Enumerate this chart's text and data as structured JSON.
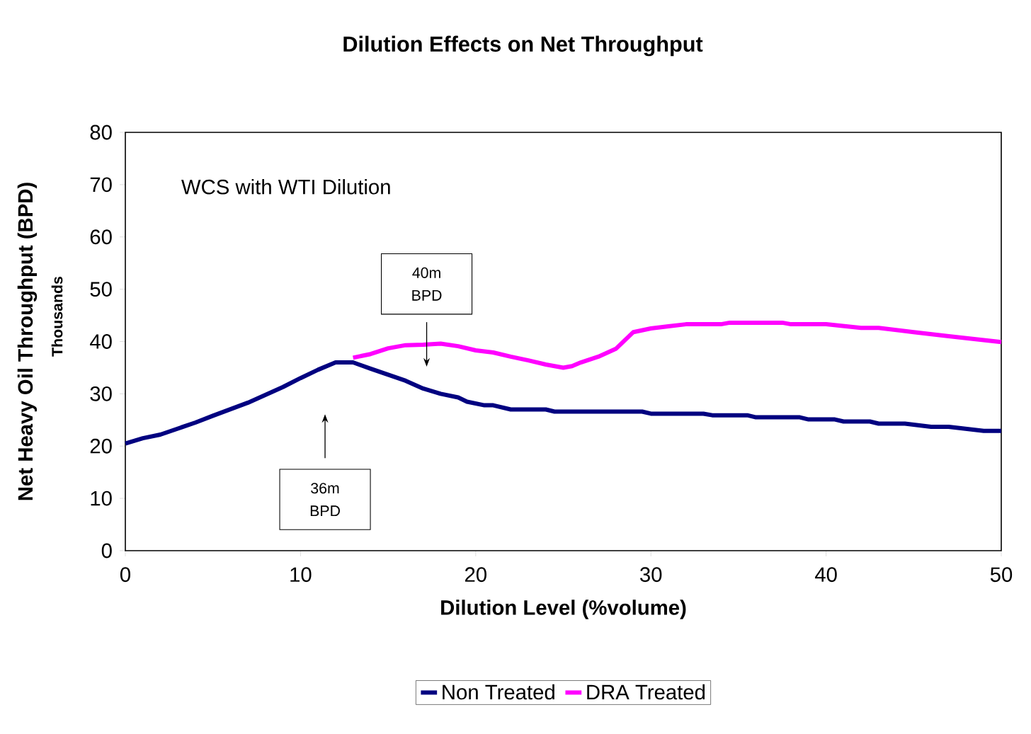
{
  "chart_data": {
    "type": "line",
    "title": "Dilution Effects on Net Throughput",
    "xlabel": "Dilution Level (%volume)",
    "ylabel": "Net Heavy Oil Throughput (BPD)",
    "annotations": [
      "WCS with WTI Dilution",
      "Thousands",
      "40m BPD",
      "36m BPD"
    ],
    "xlim": [
      0,
      50
    ],
    "ylim": [
      0,
      80
    ],
    "xticks": [
      0,
      10,
      20,
      30,
      40,
      50
    ],
    "yticks": [
      0,
      10,
      20,
      30,
      40,
      50,
      60,
      70,
      80
    ],
    "grid": false,
    "legend": "bottom",
    "marker": "none",
    "line_style": "solid",
    "series": [
      {
        "name": "Non Treated",
        "color": "#000080",
        "x": [
          0,
          1,
          2,
          4,
          5,
          7,
          9,
          10,
          11,
          12,
          13,
          14,
          16,
          17,
          18,
          19,
          19.5,
          20.5,
          21,
          22,
          24,
          24.5,
          29.5,
          30,
          33,
          33.5,
          35.5,
          36,
          38.5,
          39,
          40.5,
          41,
          42.5,
          43,
          44.5,
          46,
          47,
          49,
          50
        ],
        "values": [
          20.5,
          21.5,
          22.2,
          24.5,
          25.8,
          28.3,
          31.3,
          33,
          34.6,
          36,
          36,
          34.8,
          32.5,
          31,
          30,
          29.3,
          28.5,
          27.8,
          27.8,
          27,
          27,
          26.6,
          26.6,
          26.2,
          26.2,
          25.9,
          25.9,
          25.5,
          25.5,
          25.1,
          25.1,
          24.7,
          24.7,
          24.3,
          24.3,
          23.7,
          23.7,
          22.9,
          22.9
        ]
      },
      {
        "name": "DRA Treated",
        "color": "#ff00ff",
        "x": [
          13,
          14,
          15,
          16,
          17,
          18,
          19,
          20,
          21,
          22,
          23,
          24,
          25,
          25.5,
          26,
          27,
          28,
          29,
          30,
          31,
          32,
          34,
          34.5,
          37.5,
          38,
          40,
          42,
          43,
          45,
          47,
          50
        ],
        "values": [
          36.9,
          37.6,
          38.7,
          39.3,
          39.4,
          39.6,
          39.1,
          38.3,
          37.9,
          37.1,
          36.4,
          35.6,
          35,
          35.3,
          36,
          37.1,
          38.6,
          41.8,
          42.5,
          42.9,
          43.3,
          43.3,
          43.6,
          43.6,
          43.3,
          43.3,
          42.6,
          42.6,
          41.8,
          41,
          39.9
        ]
      }
    ]
  }
}
